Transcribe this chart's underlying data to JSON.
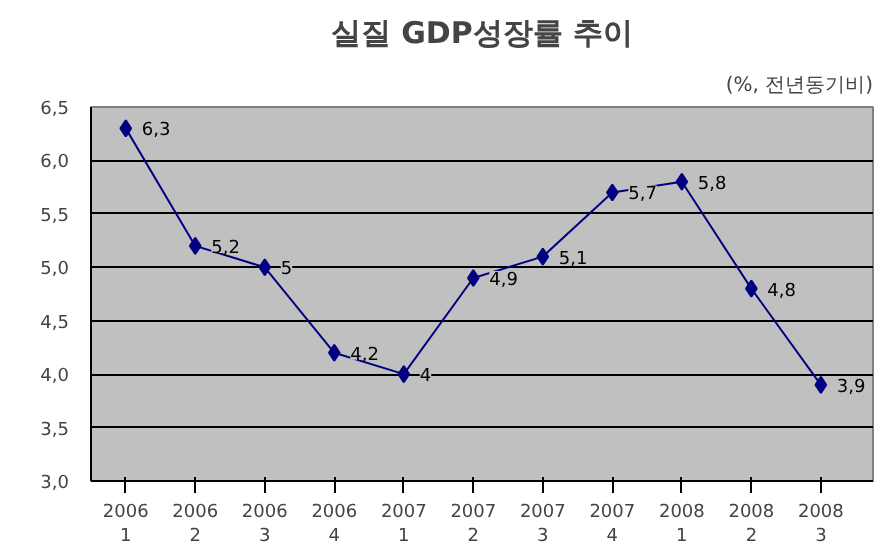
{
  "chart_data": {
    "type": "line",
    "title": "실질 GDP성장률 추이",
    "subtitle": "(%, 전년동기비)",
    "categories": [
      "2006\n1",
      "2006\n2",
      "2006\n3",
      "2006\n4",
      "2007\n1",
      "2007\n2",
      "2007\n3",
      "2007\n4",
      "2008\n1",
      "2008\n2",
      "2008\n3"
    ],
    "series": [
      {
        "color": "#000080",
        "values": [
          6.3,
          5.2,
          5.0,
          4.2,
          4.0,
          4.9,
          5.1,
          5.7,
          5.8,
          4.8,
          3.9
        ],
        "value_labels": [
          "6,3",
          "5,2",
          "5",
          "4,2",
          "4",
          "4,9",
          "5,1",
          "5,7",
          "5,8",
          "4,8",
          "3,9"
        ]
      }
    ],
    "ylim": [
      3.0,
      6.5
    ],
    "yticks": [
      {
        "value": 3.0,
        "label": "3,0"
      },
      {
        "value": 3.5,
        "label": "3,5"
      },
      {
        "value": 4.0,
        "label": "4,0"
      },
      {
        "value": 4.5,
        "label": "4,5"
      },
      {
        "value": 5.0,
        "label": "5,0"
      },
      {
        "value": 5.5,
        "label": "5,5"
      },
      {
        "value": 6.0,
        "label": "6,0"
      },
      {
        "value": 6.5,
        "label": "6,5"
      }
    ],
    "grid": "y",
    "marker": "diamond",
    "line_style": "solid"
  }
}
